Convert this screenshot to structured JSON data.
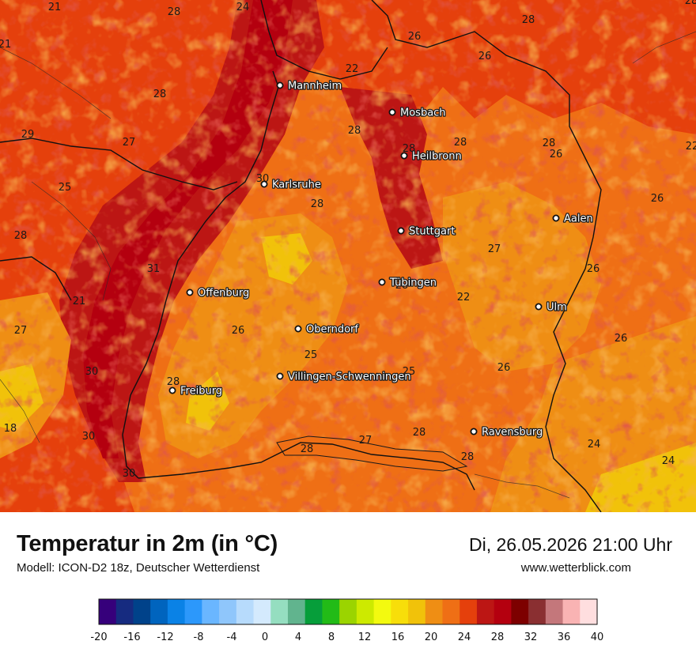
{
  "title": "Temperatur in 2m (in °C)",
  "model": "Modell: ICON-D2 18z, Deutscher Wetterdienst",
  "datetime": "Di, 26.05.2026 21:00 Uhr",
  "website": "www.wetterblick.com",
  "cities": [
    {
      "name": "Mannheim"
    },
    {
      "name": "Mosbach"
    },
    {
      "name": "Heilbronn"
    },
    {
      "name": "Karlsruhe"
    },
    {
      "name": "Aalen"
    },
    {
      "name": "Stuttgart"
    },
    {
      "name": "Tübingen"
    },
    {
      "name": "Offenburg"
    },
    {
      "name": "Ulm"
    },
    {
      "name": "Oberndorf"
    },
    {
      "name": "Villingen-Schwenningen"
    },
    {
      "name": "Freiburg"
    },
    {
      "name": "Ravensburg"
    }
  ],
  "iso_labels": [
    "21",
    "28",
    "24",
    "28",
    "26",
    "28",
    "22",
    "26",
    "21",
    "28",
    "28",
    "28",
    "29",
    "27",
    "28",
    "26",
    "22",
    "25",
    "30",
    "28",
    "26",
    "28",
    "28",
    "27",
    "31",
    "26",
    "21",
    "28",
    "22",
    "27",
    "26",
    "26",
    "25",
    "25",
    "30",
    "28",
    "26",
    "18",
    "30",
    "28",
    "27",
    "28",
    "24",
    "28",
    "24",
    "30",
    "27"
  ],
  "legend": {
    "ticks": [
      "-20",
      "-16",
      "-12",
      "-8",
      "-4",
      "0",
      "4",
      "8",
      "12",
      "16",
      "20",
      "24",
      "28",
      "32",
      "36",
      "40"
    ],
    "colors": [
      "#36007b",
      "#162b80",
      "#00428a",
      "#0064be",
      "#0a82e6",
      "#2c98fb",
      "#6ab6ff",
      "#8fc6fb",
      "#b7dbfc",
      "#d4eafd",
      "#95dec0",
      "#61b48e",
      "#069e3a",
      "#22bb17",
      "#9bd400",
      "#cdea00",
      "#f3fa0f",
      "#f7de0a",
      "#f1c20a",
      "#ef8e14",
      "#ef6f15",
      "#e5400c",
      "#bc1614",
      "#b4000f",
      "#7d0000",
      "#8a2f31",
      "#c4777b",
      "#f9b3b3",
      "#ffdedf"
    ]
  }
}
